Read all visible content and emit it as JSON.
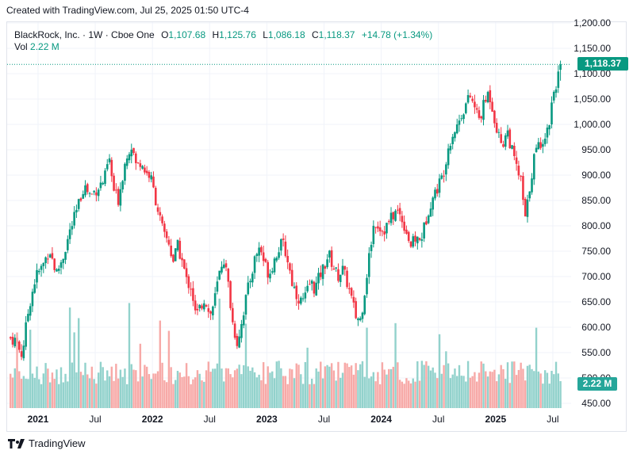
{
  "header": {
    "created_text": "Created with TradingView.com, Jul 25, 2025 01:50 UTC-4"
  },
  "legend": {
    "title": "BlackRock, Inc. · 1W · Cboe One",
    "open_label": "O",
    "open_value": "1,107.68",
    "high_label": "H",
    "high_value": "1,125.76",
    "low_label": "L",
    "low_value": "1,086.18",
    "close_label": "C",
    "close_value": "1,118.37",
    "change_value": "+14.78 (+1.34%)",
    "vol_label": "Vol",
    "vol_value": "2.22 M"
  },
  "price_tag": {
    "text": "1,118.37",
    "color": "#089981"
  },
  "volume_tag": {
    "text": "2.22 M",
    "color": "#26a69a"
  },
  "footer": {
    "brand": "TradingView"
  },
  "colors": {
    "up": "#089981",
    "down": "#f23645",
    "vol_up": "#92d2cc",
    "vol_down": "#f7a9a7",
    "grid": "#f0f3fa",
    "axis_text": "#131722"
  },
  "chart_data": {
    "type": "candlestick",
    "title": "BlackRock, Inc. · 1W · Cboe One",
    "interval": "1W",
    "y_axis": {
      "range": [
        440,
        1210
      ],
      "ticks": [
        450,
        500,
        550,
        600,
        650,
        700,
        750,
        800,
        850,
        900,
        950,
        1000,
        1050,
        1100,
        1150,
        1200
      ],
      "tick_labels": [
        "450.00",
        "500.00",
        "550.00",
        "600.00",
        "650.00",
        "700.00",
        "750.00",
        "800.00",
        "850.00",
        "900.00",
        "950.00",
        "1,000.00",
        "1,050.00",
        "1,100.00",
        "1,150.00",
        "1,200.00"
      ]
    },
    "x_axis": {
      "range": [
        2020.73,
        2025.66
      ],
      "ticks": [
        {
          "label": "2021",
          "t": 2021.0,
          "bold": true
        },
        {
          "label": "Jul",
          "t": 2021.5,
          "bold": false
        },
        {
          "label": "2022",
          "t": 2022.0,
          "bold": true
        },
        {
          "label": "Jul",
          "t": 2022.5,
          "bold": false
        },
        {
          "label": "2023",
          "t": 2023.0,
          "bold": true
        },
        {
          "label": "Jul",
          "t": 2023.5,
          "bold": false
        },
        {
          "label": "2024",
          "t": 2024.0,
          "bold": true
        },
        {
          "label": "Jul",
          "t": 2024.5,
          "bold": false
        },
        {
          "label": "2025",
          "t": 2025.0,
          "bold": true
        },
        {
          "label": "Jul",
          "t": 2025.5,
          "bold": false
        }
      ]
    },
    "close_series": [
      [
        2020.74,
        580
      ],
      [
        2020.8,
        575
      ],
      [
        2020.86,
        545
      ],
      [
        2020.92,
        640
      ],
      [
        2020.98,
        700
      ],
      [
        2021.04,
        720
      ],
      [
        2021.1,
        755
      ],
      [
        2021.16,
        705
      ],
      [
        2021.22,
        740
      ],
      [
        2021.28,
        790
      ],
      [
        2021.34,
        830
      ],
      [
        2021.4,
        880
      ],
      [
        2021.46,
        860
      ],
      [
        2021.52,
        875
      ],
      [
        2021.58,
        890
      ],
      [
        2021.62,
        935
      ],
      [
        2021.66,
        870
      ],
      [
        2021.7,
        850
      ],
      [
        2021.74,
        900
      ],
      [
        2021.78,
        945
      ],
      [
        2021.82,
        960
      ],
      [
        2021.86,
        915
      ],
      [
        2021.9,
        930
      ],
      [
        2021.94,
        905
      ],
      [
        2021.98,
        900
      ],
      [
        2022.02,
        860
      ],
      [
        2022.06,
        820
      ],
      [
        2022.1,
        780
      ],
      [
        2022.14,
        770
      ],
      [
        2022.18,
        730
      ],
      [
        2022.22,
        760
      ],
      [
        2022.26,
        730
      ],
      [
        2022.3,
        690
      ],
      [
        2022.34,
        680
      ],
      [
        2022.38,
        620
      ],
      [
        2022.42,
        640
      ],
      [
        2022.46,
        660
      ],
      [
        2022.5,
        620
      ],
      [
        2022.54,
        650
      ],
      [
        2022.58,
        700
      ],
      [
        2022.62,
        740
      ],
      [
        2022.66,
        690
      ],
      [
        2022.7,
        610
      ],
      [
        2022.74,
        570
      ],
      [
        2022.78,
        610
      ],
      [
        2022.82,
        660
      ],
      [
        2022.86,
        700
      ],
      [
        2022.9,
        740
      ],
      [
        2022.94,
        760
      ],
      [
        2022.98,
        725
      ],
      [
        2023.02,
        705
      ],
      [
        2023.06,
        730
      ],
      [
        2023.1,
        755
      ],
      [
        2023.14,
        765
      ],
      [
        2023.18,
        735
      ],
      [
        2023.22,
        690
      ],
      [
        2023.26,
        665
      ],
      [
        2023.3,
        650
      ],
      [
        2023.34,
        660
      ],
      [
        2023.38,
        690
      ],
      [
        2023.42,
        675
      ],
      [
        2023.46,
        700
      ],
      [
        2023.5,
        720
      ],
      [
        2023.54,
        745
      ],
      [
        2023.58,
        720
      ],
      [
        2023.62,
        700
      ],
      [
        2023.66,
        715
      ],
      [
        2023.7,
        690
      ],
      [
        2023.74,
        655
      ],
      [
        2023.78,
        620
      ],
      [
        2023.82,
        615
      ],
      [
        2023.86,
        680
      ],
      [
        2023.9,
        750
      ],
      [
        2023.94,
        810
      ],
      [
        2023.98,
        800
      ],
      [
        2024.02,
        790
      ],
      [
        2024.06,
        805
      ],
      [
        2024.1,
        820
      ],
      [
        2024.14,
        830
      ],
      [
        2024.18,
        815
      ],
      [
        2024.22,
        790
      ],
      [
        2024.26,
        760
      ],
      [
        2024.3,
        775
      ],
      [
        2024.34,
        770
      ],
      [
        2024.38,
        800
      ],
      [
        2024.42,
        840
      ],
      [
        2024.46,
        860
      ],
      [
        2024.5,
        880
      ],
      [
        2024.54,
        900
      ],
      [
        2024.58,
        950
      ],
      [
        2024.62,
        980
      ],
      [
        2024.66,
        995
      ],
      [
        2024.7,
        1020
      ],
      [
        2024.74,
        1040
      ],
      [
        2024.78,
        1055
      ],
      [
        2024.82,
        1030
      ],
      [
        2024.86,
        1010
      ],
      [
        2024.9,
        1040
      ],
      [
        2024.94,
        1065
      ],
      [
        2024.98,
        1025
      ],
      [
        2025.02,
        980
      ],
      [
        2025.06,
        960
      ],
      [
        2025.1,
        990
      ],
      [
        2025.14,
        950
      ],
      [
        2025.18,
        915
      ],
      [
        2025.22,
        890
      ],
      [
        2025.26,
        810
      ],
      [
        2025.3,
        880
      ],
      [
        2025.34,
        940
      ],
      [
        2025.38,
        960
      ],
      [
        2025.42,
        975
      ],
      [
        2025.46,
        990
      ],
      [
        2025.5,
        1060
      ],
      [
        2025.54,
        1090
      ],
      [
        2025.57,
        1118.37
      ]
    ]
  }
}
